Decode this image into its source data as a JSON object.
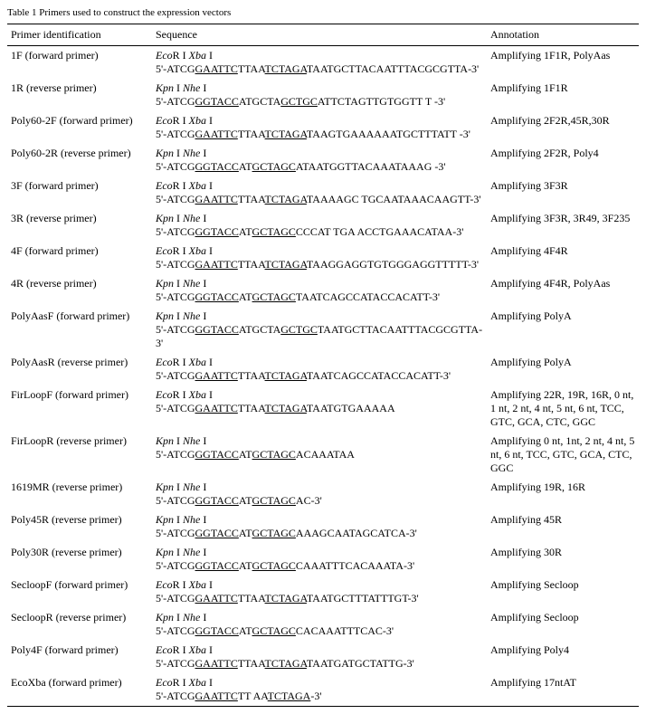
{
  "caption": "Table 1   Primers used to construct the expression vectors",
  "headers": {
    "id": "Primer identification",
    "seq": "Sequence",
    "ann": "Annotation"
  },
  "rows": [
    {
      "id": "1F (forward primer)",
      "enz": "EcoR I Xba I",
      "pre": "5'-ATCG",
      "u1": "GAATTC",
      "mid": "TTAA",
      "u2": "TCTAGA",
      "post": "TAATGCTTACAATTTACGCGTTA-3'",
      "ann": "Amplifying 1F1R, PolyAas"
    },
    {
      "id": "1R (reverse primer)",
      "enz": "Kpn I Nhe I",
      "pre": "5'-ATCG",
      "u1": "GGTACC",
      "mid": "ATGCTA",
      "u2": "GCTGC",
      "post": "ATTCTAGTTGTGGTT T -3'",
      "ann": "Amplifying 1F1R"
    },
    {
      "id": "Poly60-2F (forward primer)",
      "enz": "EcoR I Xba I",
      "pre": "5'-ATCG",
      "u1": "GAATTC",
      "mid": "TTAA",
      "u2": "TCTAGA",
      "post": "TAAGTGAAAAAATGCTTTATT -3'",
      "ann": "Amplifying 2F2R,45R,30R"
    },
    {
      "id": "Poly60-2R (reverse primer)",
      "enz": "Kpn I Nhe I",
      "pre": "5'-ATCG",
      "u1": "GGTACC",
      "mid": "AT",
      "u2": "GCTAGC",
      "post": "ATAATGGTTACAAATAAAG -3'",
      "ann": "Amplifying 2F2R, Poly4"
    },
    {
      "id": "3F (forward primer)",
      "enz": "EcoR I Xba I",
      "pre": "5'-ATCG",
      "u1": "GAATTC",
      "mid": "TTAA",
      "u2": "TCTAGA",
      "post": "TAAAAGC TGCAATAAACAAGTT-3'",
      "ann": "Amplifying 3F3R"
    },
    {
      "id": "3R (reverse primer)",
      "enz": "Kpn I Nhe I",
      "pre": "5'-ATCG",
      "u1": "GGTACC",
      "mid": "AT",
      "u2": "GCTAGC",
      "post": "CCCAT TGA ACCTGAAACATAA-3'",
      "ann": "Amplifying 3F3R, 3R49, 3F235"
    },
    {
      "id": "4F (forward primer)",
      "enz": "EcoR I Xba I",
      "pre": "5'-ATCG",
      "u1": "GAATTC",
      "mid": "TTAA",
      "u2": "TCTAGA",
      "post": "TAAGGAGGTGTGGGAGGTTTTT-3'",
      "ann": "Amplifying 4F4R"
    },
    {
      "id": "4R (reverse primer)",
      "enz": "Kpn I Nhe I",
      "pre": "5'-ATCG",
      "u1": "GGTACC",
      "mid": "AT",
      "u2": "GCTAGC",
      "post": "TAATCAGCCATACCACATT-3'",
      "ann": "Amplifying 4F4R, PolyAas"
    },
    {
      "id": "PolyAasF (forward primer)",
      "enz": "Kpn I Nhe I",
      "pre": "5'-ATCG",
      "u1": "GGTACC",
      "mid": "ATGCTA",
      "u2": "GCTGC",
      "post": "TAATGCTTACAATTTACGCGTTA-3'",
      "ann": "Amplifying PolyA"
    },
    {
      "id": "PolyAasR (reverse primer)",
      "enz": "EcoR I Xba I",
      "pre": "5'-ATCG",
      "u1": "GAATTC",
      "mid": "TTAA",
      "u2": "TCTAGA",
      "post": "TAATCAGCCATACCACATT-3'",
      "ann": "Amplifying PolyA"
    },
    {
      "id": "FirLoopF (forward primer)",
      "enz": "EcoR I Xba I",
      "pre": "5'-ATCG",
      "u1": "GAATTC",
      "mid": "TTAA",
      "u2": "TCTAGA",
      "post": "TAATGTGAAAAA",
      "ann": "Amplifying 22R, 19R, 16R, 0 nt, 1 nt, 2 nt, 4 nt, 5 nt, 6 nt, TCC, GTC, GCA, CTC, GGC"
    },
    {
      "id": "FirLoopR (reverse primer)",
      "enz": "Kpn I Nhe I",
      "pre": "5'-ATCG",
      "u1": "GGTACC",
      "mid": "AT",
      "u2": "GCTAGC",
      "post": "ACAAATAA",
      "ann": "Amplifying 0 nt, 1nt, 2 nt, 4 nt, 5 nt, 6 nt, TCC, GTC, GCA, CTC, GGC"
    },
    {
      "id": "1619MR (reverse primer)",
      "enz": "Kpn I Nhe I",
      "pre": "5'-ATCG",
      "u1": "GGTACC",
      "mid": "AT",
      "u2": "GCTAGC",
      "post": "AC-3'",
      "ann": "Amplifying 19R, 16R"
    },
    {
      "id": "Poly45R (reverse primer)",
      "enz": "Kpn I Nhe I",
      "pre": "5'-ATCG",
      "u1": "GGTACC",
      "mid": "AT",
      "u2": "GCTAGC",
      "post": "AAAGCAATAGCATCA-3'",
      "ann": "Amplifying 45R"
    },
    {
      "id": "Poly30R (reverse primer)",
      "enz": "Kpn I Nhe I",
      "pre": "5'-ATCG",
      "u1": "GGTACC",
      "mid": "AT",
      "u2": "GCTAGC",
      "post": "CAAATTTCACAAATA-3'",
      "ann": "Amplifying 30R"
    },
    {
      "id": "SecloopF (forward primer)",
      "enz": "EcoR I Xba I",
      "pre": "5'-ATCG",
      "u1": "GAATTC",
      "mid": "TTAA",
      "u2": "TCTAGA",
      "post": "TAATGCTTTATTTGT-3'",
      "ann": "Amplifying Secloop"
    },
    {
      "id": "SecloopR (reverse primer)",
      "enz": "Kpn I Nhe I",
      "pre": "5'-ATCG",
      "u1": "GGTACC",
      "mid": "AT",
      "u2": "GCTAGC",
      "post": "CACAAATTTCAC-3'",
      "ann": "Amplifying Secloop"
    },
    {
      "id": "Poly4F (forward primer)",
      "enz": "EcoR I Xba I",
      "pre": "5'-ATCG",
      "u1": "GAATTC",
      "mid": "TTAA",
      "u2": "TCTAGA",
      "post": "TAATGATGCTATTG-3'",
      "ann": "Amplifying Poly4"
    },
    {
      "id": "EcoXba (forward primer)",
      "enz": "EcoR I Xba I",
      "pre": "5'-ATCG",
      "u1": "GAATTC",
      "mid": "TT AA",
      "u2": "TCTAGA",
      "post": "-3'",
      "ann": "Amplifying 17ntAT"
    }
  ]
}
